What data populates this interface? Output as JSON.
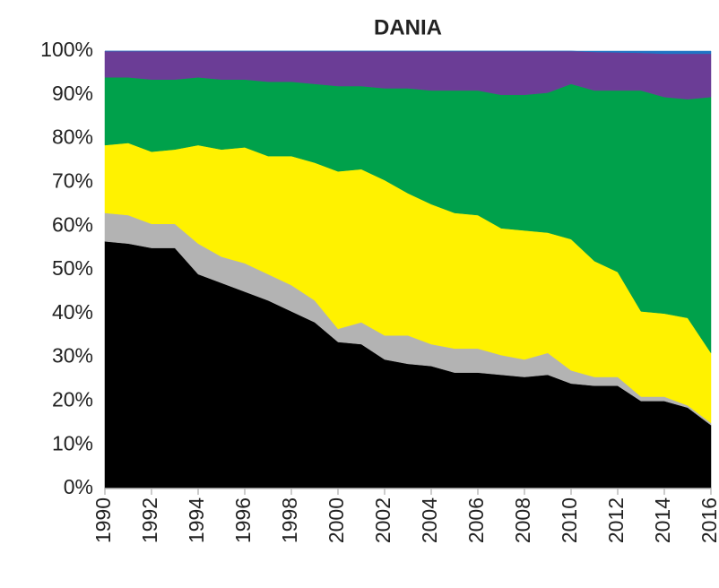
{
  "chart_data": {
    "type": "stacked-area",
    "title": "DANIA",
    "x": [
      1990,
      1991,
      1992,
      1993,
      1994,
      1995,
      1996,
      1997,
      1998,
      1999,
      2000,
      2001,
      2002,
      2003,
      2004,
      2005,
      2006,
      2007,
      2008,
      2009,
      2010,
      2011,
      2012,
      2013,
      2014,
      2015,
      2016
    ],
    "xlim": [
      1990,
      2016
    ],
    "xticks": [
      1990,
      1992,
      1994,
      1996,
      1998,
      2000,
      2002,
      2004,
      2006,
      2008,
      2010,
      2012,
      2014,
      2016
    ],
    "ylim": [
      0,
      100
    ],
    "yticks": [
      {
        "value": 0,
        "label": "0%"
      },
      {
        "value": 10,
        "label": "10%"
      },
      {
        "value": 20,
        "label": "20%"
      },
      {
        "value": 30,
        "label": "30%"
      },
      {
        "value": 40,
        "label": "40%"
      },
      {
        "value": 50,
        "label": "50%"
      },
      {
        "value": 60,
        "label": "60%"
      },
      {
        "value": 70,
        "label": "70%"
      },
      {
        "value": 80,
        "label": "80%"
      },
      {
        "value": 90,
        "label": "90%"
      },
      {
        "value": 100,
        "label": "100%"
      }
    ],
    "series": [
      {
        "color": "#000000",
        "values": [
          56.5,
          56,
          55,
          55,
          49,
          47,
          45,
          43,
          40.5,
          38,
          33.5,
          33,
          29.5,
          28.5,
          28,
          26.5,
          26.5,
          26,
          25.5,
          26,
          24,
          23.5,
          23.5,
          20,
          20,
          18.5,
          14.5
        ]
      },
      {
        "color": "#b3b3b3",
        "values": [
          6.5,
          6.5,
          5.5,
          5.5,
          7,
          6,
          6.5,
          6,
          6,
          5,
          3,
          5,
          5.5,
          6.5,
          5,
          5.5,
          5.5,
          4.5,
          4,
          5,
          3,
          2,
          2,
          1,
          1,
          0.5,
          0.5
        ]
      },
      {
        "color": "#fff200",
        "values": [
          15.5,
          16.5,
          16.5,
          17,
          22.5,
          24.5,
          26.5,
          27,
          29.5,
          31.5,
          36,
          35,
          35.5,
          32.5,
          32,
          31,
          30.5,
          29,
          29.5,
          27.5,
          30,
          26.5,
          24,
          19.5,
          19,
          20,
          16
        ]
      },
      {
        "color": "#00a14b",
        "values": [
          15.5,
          15,
          16.5,
          16,
          15.5,
          16,
          15.5,
          17,
          17,
          18,
          19.5,
          19,
          21,
          24,
          26,
          28,
          28.5,
          30.5,
          31,
          32,
          35.5,
          39,
          41.5,
          50.5,
          49.5,
          50,
          58.5
        ]
      },
      {
        "color": "#6b3d96",
        "values": [
          6,
          6,
          6.5,
          6.5,
          6,
          6.5,
          6.5,
          7,
          7,
          7.5,
          8,
          8,
          8.5,
          8.5,
          9,
          9,
          9,
          10,
          10,
          9.5,
          7.5,
          8.8,
          8.7,
          8.6,
          9.9,
          10.4,
          9.9
        ]
      },
      {
        "color": "#1f74c4",
        "values": [
          0,
          0,
          0,
          0,
          0,
          0,
          0,
          0,
          0,
          0,
          0,
          0,
          0,
          0,
          0,
          0,
          0,
          0,
          0,
          0,
          0,
          0.2,
          0.3,
          0.4,
          0.6,
          0.6,
          0.6
        ]
      }
    ]
  }
}
